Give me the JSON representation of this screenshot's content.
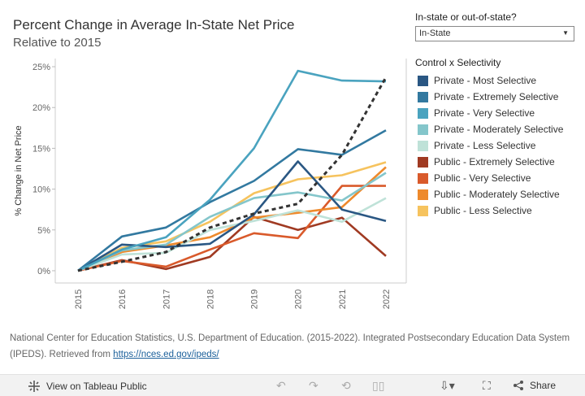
{
  "title": "Percent Change in Average In-State Net Price",
  "subtitle": "Relative to 2015",
  "filter": {
    "label": "In-state or out-of-state?",
    "selected": "In-State",
    "arrow": "▼"
  },
  "legend": {
    "title": "Control x Selectivity",
    "items": [
      {
        "label": "Private - Most Selective",
        "color": "#2a5783"
      },
      {
        "label": "Private - Extremely Selective",
        "color": "#3279a0"
      },
      {
        "label": "Private - Very Selective",
        "color": "#4aa3bf"
      },
      {
        "label": "Private - Moderately Selective",
        "color": "#84c6cb"
      },
      {
        "label": "Private - Less Selective",
        "color": "#bfe2d8"
      },
      {
        "label": "Public - Extremely Selective",
        "color": "#a03a22"
      },
      {
        "label": "Public - Very Selective",
        "color": "#d95a2b"
      },
      {
        "label": "Public - Moderately Selective",
        "color": "#ee8a2c"
      },
      {
        "label": "Public - Less Selective",
        "color": "#f6c35e"
      }
    ]
  },
  "chart_data": {
    "type": "line",
    "ylabel": "% Change in Net Price",
    "xlabel": "",
    "x": [
      "2015",
      "2016",
      "2017",
      "2018",
      "2019",
      "2020",
      "2021",
      "2022"
    ],
    "yticks": [
      "0%",
      "5%",
      "10%",
      "15%",
      "20%",
      "25%"
    ],
    "ylim": [
      -1.5,
      26
    ],
    "series": [
      {
        "name": "Public - Extremely Selective",
        "color": "#a03a22",
        "values": [
          0,
          1.3,
          0.2,
          1.7,
          6.6,
          5.0,
          6.5,
          1.8
        ]
      },
      {
        "name": "Public - Very Selective",
        "color": "#d95a2b",
        "values": [
          0,
          1.2,
          0.5,
          2.6,
          4.6,
          4.0,
          10.4,
          10.4
        ]
      },
      {
        "name": "Public - Moderately Selective",
        "color": "#ee8a2c",
        "values": [
          0,
          2.3,
          3.1,
          4.1,
          6.5,
          7.1,
          7.8,
          12.7
        ]
      },
      {
        "name": "Public - Less Selective",
        "color": "#f6c35e",
        "values": [
          0,
          2.8,
          3.6,
          6.0,
          9.5,
          11.2,
          11.7,
          13.3
        ]
      },
      {
        "name": "Private - Less Selective",
        "color": "#bfe2d8",
        "values": [
          0,
          2.0,
          2.2,
          5.0,
          6.1,
          7.4,
          6.0,
          8.9
        ]
      },
      {
        "name": "Private - Moderately Selective",
        "color": "#84c6cb",
        "values": [
          0,
          2.5,
          3.2,
          6.6,
          8.9,
          9.6,
          8.6,
          12.0
        ]
      },
      {
        "name": "Private - Most Selective",
        "color": "#2a5783",
        "values": [
          0,
          3.2,
          2.9,
          3.3,
          6.9,
          13.4,
          7.5,
          6.1
        ]
      },
      {
        "name": "Private - Extremely Selective",
        "color": "#3279a0",
        "values": [
          0,
          4.2,
          5.3,
          8.4,
          11.0,
          14.9,
          14.2,
          17.2
        ]
      },
      {
        "name": "Private - Very Selective",
        "color": "#4aa3bf",
        "values": [
          0,
          2.6,
          4.1,
          8.7,
          15.0,
          24.5,
          23.3,
          23.2
        ]
      },
      {
        "name": "Overall (dashed)",
        "color": "#333333",
        "dashed": true,
        "values": [
          0,
          1.1,
          2.3,
          5.3,
          7.0,
          8.2,
          14.2,
          23.7
        ]
      }
    ]
  },
  "source": {
    "text": "National Center for Education Statistics, U.S. Department of Education. (2015-2022). Integrated Postsecondary Education Data System (IPEDS). Retrieved from ",
    "link": "https://nces.ed.gov/ipeds/"
  },
  "toolbar": {
    "view_label": "View on Tableau Public",
    "share_label": "Share",
    "icons": [
      "undo-icon",
      "redo-icon",
      "revert-icon",
      "pause-icon",
      "download-icon",
      "fullscreen-icon",
      "share-icon"
    ]
  }
}
